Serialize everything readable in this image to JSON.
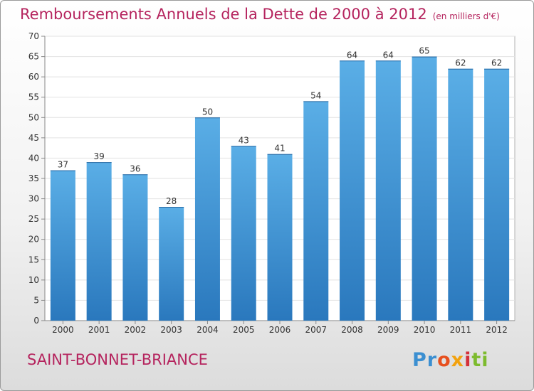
{
  "title": "Remboursements Annuels de la Dette de 2000 à 2012",
  "subtitle": "(en milliers d'€)",
  "commune": "SAINT-BONNET-BRIANCE",
  "logo": {
    "p1": "Pr",
    "p2": "o",
    "p3": "x",
    "p4": "i",
    "p5": "ti"
  },
  "colors": {
    "accent": "#b5245e",
    "bar_light": "#5aaee6",
    "bar_dark": "#2a78bd"
  },
  "chart_data": {
    "type": "bar",
    "title": "Remboursements Annuels de la Dette de 2000 à 2012",
    "xlabel": "",
    "ylabel": "",
    "ylim": [
      0,
      70
    ],
    "yticks": [
      0,
      5,
      10,
      15,
      20,
      25,
      30,
      35,
      40,
      45,
      50,
      55,
      60,
      65,
      70
    ],
    "categories": [
      "2000",
      "2001",
      "2002",
      "2003",
      "2004",
      "2005",
      "2006",
      "2007",
      "2008",
      "2009",
      "2010",
      "2011",
      "2012"
    ],
    "values": [
      37,
      39,
      36,
      28,
      50,
      43,
      41,
      54,
      64,
      64,
      65,
      62,
      62
    ],
    "grid": true
  }
}
